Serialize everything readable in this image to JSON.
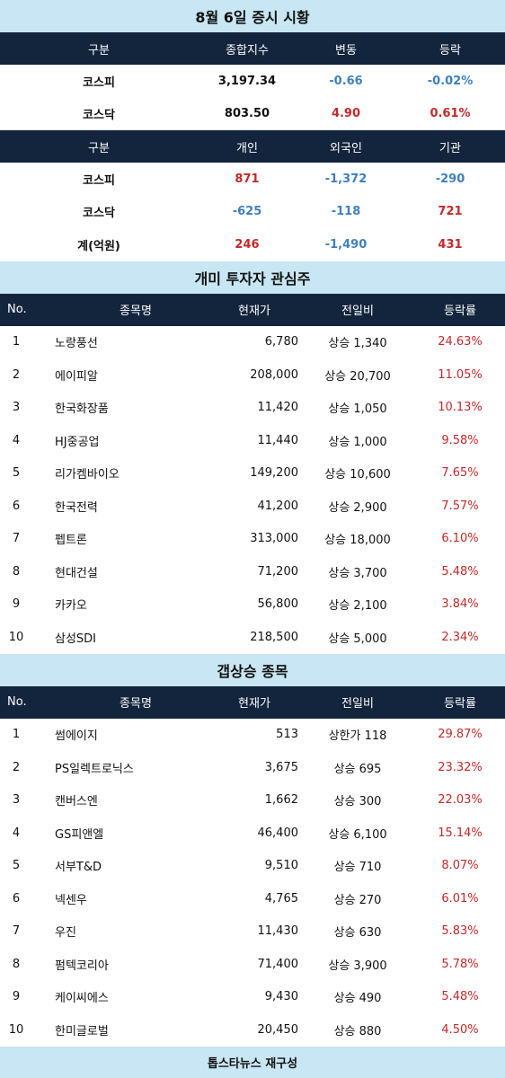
{
  "title": "8월 6일 증시 시황",
  "index_table": {
    "headers": [
      "구분",
      "종합지수",
      "변동",
      "등락"
    ],
    "rows": [
      {
        "name": "코스피",
        "index": "3,197.34",
        "change": "-0.66",
        "rate": "-0.02%",
        "trend": "down"
      },
      {
        "name": "코스닥",
        "index": "803.50",
        "change": "4.90",
        "rate": "0.61%",
        "trend": "up"
      }
    ]
  },
  "investor_table": {
    "headers": [
      "구분",
      "개인",
      "외국인",
      "기관"
    ],
    "rows": [
      {
        "name": "코스피",
        "individual": "871",
        "foreign": "-1,372",
        "institution": "-290"
      },
      {
        "name": "코스닥",
        "individual": "-625",
        "foreign": "-118",
        "institution": "721"
      },
      {
        "name": "계(억원)",
        "individual": "246",
        "foreign": "-1,490",
        "institution": "431"
      }
    ]
  },
  "retail_section": {
    "title": "개미 투자자 관심주",
    "headers": [
      "No.",
      "종목명",
      "현재가",
      "전일비",
      "등락률"
    ],
    "rows": [
      {
        "no": "1",
        "name": "노랑풍선",
        "price": "6,780",
        "diff": "상승 1,340",
        "rate": "24.63%"
      },
      {
        "no": "2",
        "name": "에이피알",
        "price": "208,000",
        "diff": "상승 20,700",
        "rate": "11.05%"
      },
      {
        "no": "3",
        "name": "한국화장품",
        "price": "11,420",
        "diff": "상승 1,050",
        "rate": "10.13%"
      },
      {
        "no": "4",
        "name": "HJ중공업",
        "price": "11,440",
        "diff": "상승 1,000",
        "rate": "9.58%"
      },
      {
        "no": "5",
        "name": "리가켐바이오",
        "price": "149,200",
        "diff": "상승 10,600",
        "rate": "7.65%"
      },
      {
        "no": "6",
        "name": "한국전력",
        "price": "41,200",
        "diff": "상승 2,900",
        "rate": "7.57%"
      },
      {
        "no": "7",
        "name": "펩트론",
        "price": "313,000",
        "diff": "상승 18,000",
        "rate": "6.10%"
      },
      {
        "no": "8",
        "name": "현대건설",
        "price": "71,200",
        "diff": "상승 3,700",
        "rate": "5.48%"
      },
      {
        "no": "9",
        "name": "카카오",
        "price": "56,800",
        "diff": "상승 2,100",
        "rate": "3.84%"
      },
      {
        "no": "10",
        "name": "삼성SDI",
        "price": "218,500",
        "diff": "상승 5,000",
        "rate": "2.34%"
      }
    ]
  },
  "gap_section": {
    "title": "갭상승 종목",
    "headers": [
      "No.",
      "종목명",
      "현재가",
      "전일비",
      "등락률"
    ],
    "rows": [
      {
        "no": "1",
        "name": "썸에이지",
        "price": "513",
        "diff": "상한가 118",
        "rate": "29.87%"
      },
      {
        "no": "2",
        "name": "PS일렉트로닉스",
        "price": "3,675",
        "diff": "상승 695",
        "rate": "23.32%"
      },
      {
        "no": "3",
        "name": "캔버스엔",
        "price": "1,662",
        "diff": "상승 300",
        "rate": "22.03%"
      },
      {
        "no": "4",
        "name": "GS피앤엘",
        "price": "46,400",
        "diff": "상승 6,100",
        "rate": "15.14%"
      },
      {
        "no": "5",
        "name": "서부T&D",
        "price": "9,510",
        "diff": "상승 710",
        "rate": "8.07%"
      },
      {
        "no": "6",
        "name": "넥센우",
        "price": "4,765",
        "diff": "상승 270",
        "rate": "6.01%"
      },
      {
        "no": "7",
        "name": "우진",
        "price": "11,430",
        "diff": "상승 630",
        "rate": "5.83%"
      },
      {
        "no": "8",
        "name": "펌텍코리아",
        "price": "71,400",
        "diff": "상승 3,900",
        "rate": "5.78%"
      },
      {
        "no": "9",
        "name": "케이씨에스",
        "price": "9,430",
        "diff": "상승 490",
        "rate": "5.48%"
      },
      {
        "no": "10",
        "name": "한미글로벌",
        "price": "20,450",
        "diff": "상승 880",
        "rate": "4.50%"
      }
    ]
  },
  "footer": "톱스타뉴스 재구성",
  "colors": {
    "up": "#c62828",
    "down": "#3f7fc1",
    "header_bg": "#13243d",
    "title_bg": "#c8e6f3"
  }
}
